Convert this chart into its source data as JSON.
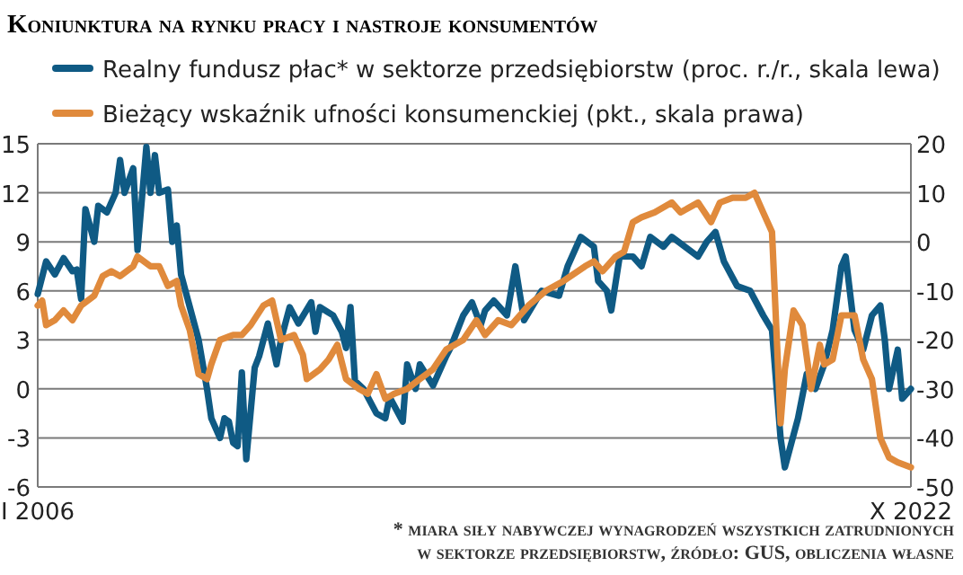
{
  "chart_data": {
    "type": "line",
    "title": "Koniunktura na rynku pracy i nastroje konsumentów",
    "xlim": [
      "2006-01",
      "2022-10"
    ],
    "xticks": [
      {
        "value": "2006-01",
        "label": "I 2006"
      },
      {
        "value": "2022-10",
        "label": "X 2022"
      }
    ],
    "ylim": [
      -6,
      15
    ],
    "yticks": [
      -6,
      -3,
      0,
      3,
      6,
      9,
      12,
      15
    ],
    "y2lim": [
      -50,
      20
    ],
    "y2ticks": [
      -50,
      -40,
      -30,
      -20,
      -10,
      0,
      10,
      20
    ],
    "grid": "y",
    "legend": "top left",
    "line_style": "solid",
    "marker": "none",
    "series": [
      {
        "name": "Realny fundusz płac* w sektorze przedsiębiorstw (proc. r./r., skala lewa)",
        "color": "#0f5a84",
        "x": [
          "2006-01",
          "2006-03",
          "2006-05",
          "2006-07",
          "2006-09",
          "2006-10",
          "2006-11",
          "2006-12",
          "2007-02",
          "2007-03",
          "2007-05",
          "2007-07",
          "2007-08",
          "2007-09",
          "2007-11",
          "2007-12",
          "2008-02",
          "2008-03",
          "2008-04",
          "2008-05",
          "2008-07",
          "2008-08",
          "2008-09",
          "2008-10",
          "2009-02",
          "2009-04",
          "2009-05",
          "2009-07",
          "2009-08",
          "2009-09",
          "2009-10",
          "2009-11",
          "2009-12",
          "2010-01",
          "2010-03",
          "2010-04",
          "2010-06",
          "2010-08",
          "2010-09",
          "2010-11",
          "2011-01",
          "2011-04",
          "2011-05",
          "2011-06",
          "2011-09",
          "2011-11",
          "2011-12",
          "2012-01",
          "2012-02",
          "2012-04",
          "2012-07",
          "2012-09",
          "2012-10",
          "2013-01",
          "2013-02",
          "2013-04",
          "2013-05",
          "2013-08",
          "2013-11",
          "2013-12",
          "2014-03",
          "2014-05",
          "2014-07",
          "2014-08",
          "2014-10",
          "2015-01",
          "2015-03",
          "2015-05",
          "2015-09",
          "2016-01",
          "2016-03",
          "2016-06",
          "2016-09",
          "2016-10",
          "2016-12",
          "2017-01",
          "2017-03",
          "2017-06",
          "2017-08",
          "2017-10",
          "2018-01",
          "2018-03",
          "2018-06",
          "2018-09",
          "2018-11",
          "2019-01",
          "2019-03",
          "2019-06",
          "2019-09",
          "2019-12",
          "2020-02",
          "2020-04",
          "2020-05",
          "2020-08",
          "2020-10",
          "2020-12",
          "2021-02",
          "2021-04",
          "2021-06",
          "2021-07",
          "2021-09",
          "2021-11",
          "2022-01",
          "2022-03",
          "2022-04",
          "2022-05",
          "2022-07",
          "2022-08",
          "2022-10"
        ],
        "values": [
          5.8,
          7.8,
          7,
          8,
          7.2,
          7.3,
          5.5,
          11,
          9,
          11.2,
          10.8,
          12,
          14,
          12,
          13.5,
          8.5,
          14.8,
          12,
          14.3,
          12,
          12.2,
          9,
          10,
          7,
          3,
          0,
          -1.8,
          -3,
          -1.8,
          -2,
          -3.3,
          -3.5,
          1,
          -4.3,
          1.3,
          2,
          4,
          1.5,
          3,
          5,
          4,
          5.3,
          3.5,
          5,
          4.5,
          3.5,
          2.5,
          5,
          0.5,
          0,
          -1.5,
          -1.8,
          -0.5,
          -2,
          1.5,
          0,
          1.5,
          0.2,
          2,
          2.5,
          4.5,
          5.3,
          3.9,
          4.8,
          5.4,
          4.5,
          7.5,
          4.2,
          6,
          5.7,
          7.5,
          9.3,
          8.7,
          6.6,
          6,
          4.8,
          8.1,
          8.1,
          7.5,
          9.3,
          8.7,
          9.3,
          8.7,
          8.1,
          9,
          9.6,
          7.8,
          6.3,
          6,
          4.5,
          3.6,
          -3,
          -4.8,
          -1.8,
          0.9,
          0,
          1.5,
          3.6,
          7.5,
          8.1,
          3.6,
          2.4,
          4.5,
          5.1,
          3,
          0,
          2.4,
          -0.6,
          0
        ]
      },
      {
        "name": "Bieżący wskaźnik ufności konsumenckiej (pkt., skala prawa)",
        "color": "#e08a3c",
        "axis": "y2",
        "x": [
          "2006-01",
          "2006-02",
          "2006-03",
          "2006-05",
          "2006-07",
          "2006-09",
          "2006-11",
          "2007-02",
          "2007-04",
          "2007-06",
          "2007-08",
          "2007-11",
          "2007-12",
          "2008-03",
          "2008-05",
          "2008-07",
          "2008-09",
          "2008-10",
          "2008-12",
          "2009-02",
          "2009-04",
          "2009-05",
          "2009-07",
          "2009-10",
          "2009-12",
          "2010-02",
          "2010-05",
          "2010-07",
          "2010-09",
          "2010-12",
          "2011-02",
          "2011-03",
          "2011-06",
          "2011-08",
          "2011-10",
          "2011-12",
          "2012-03",
          "2012-05",
          "2012-07",
          "2012-09",
          "2012-11",
          "2013-02",
          "2013-05",
          "2013-08",
          "2013-11",
          "2014-03",
          "2014-06",
          "2014-08",
          "2014-11",
          "2015-02",
          "2015-06",
          "2015-10",
          "2016-02",
          "2016-07",
          "2016-09",
          "2016-11",
          "2017-02",
          "2017-04",
          "2017-06",
          "2017-08",
          "2017-11",
          "2018-03",
          "2018-05",
          "2018-09",
          "2018-12",
          "2019-02",
          "2019-05",
          "2019-08",
          "2019-10",
          "2019-12",
          "2020-02",
          "2020-04",
          "2020-05",
          "2020-07",
          "2020-09",
          "2020-11",
          "2021-01",
          "2021-02",
          "2021-04",
          "2021-06",
          "2021-09",
          "2021-11",
          "2022-01",
          "2022-03",
          "2022-05",
          "2022-07",
          "2022-10"
        ],
        "values": [
          -13,
          -12,
          -17,
          -16,
          -14,
          -16,
          -13,
          -11,
          -7,
          -6,
          -7,
          -5,
          -3,
          -5,
          -5,
          -9,
          -8,
          -13,
          -18,
          -27,
          -28,
          -25,
          -20,
          -19,
          -19,
          -17,
          -13,
          -12,
          -20,
          -19,
          -23,
          -28,
          -26,
          -24,
          -21,
          -28,
          -30,
          -31,
          -27,
          -32,
          -31,
          -30,
          -28,
          -26,
          -22,
          -20,
          -16,
          -19,
          -16,
          -17,
          -13,
          -10,
          -8,
          -5,
          -4,
          -6,
          -3,
          -2,
          4,
          5,
          6,
          8,
          6,
          8,
          4,
          8,
          9,
          9,
          10,
          6,
          2,
          -37,
          -26,
          -14,
          -17,
          -30,
          -21,
          -25,
          -24,
          -15,
          -15,
          -24,
          -28,
          -40,
          -44,
          -45,
          -46
        ]
      }
    ],
    "annotations": [
      "* miara siły nabywczej wynagrodzeń wszystkich zatrudnionych",
      "w sektorze przedsiębiorstw, źródło: GUS, obliczenia własne"
    ]
  }
}
